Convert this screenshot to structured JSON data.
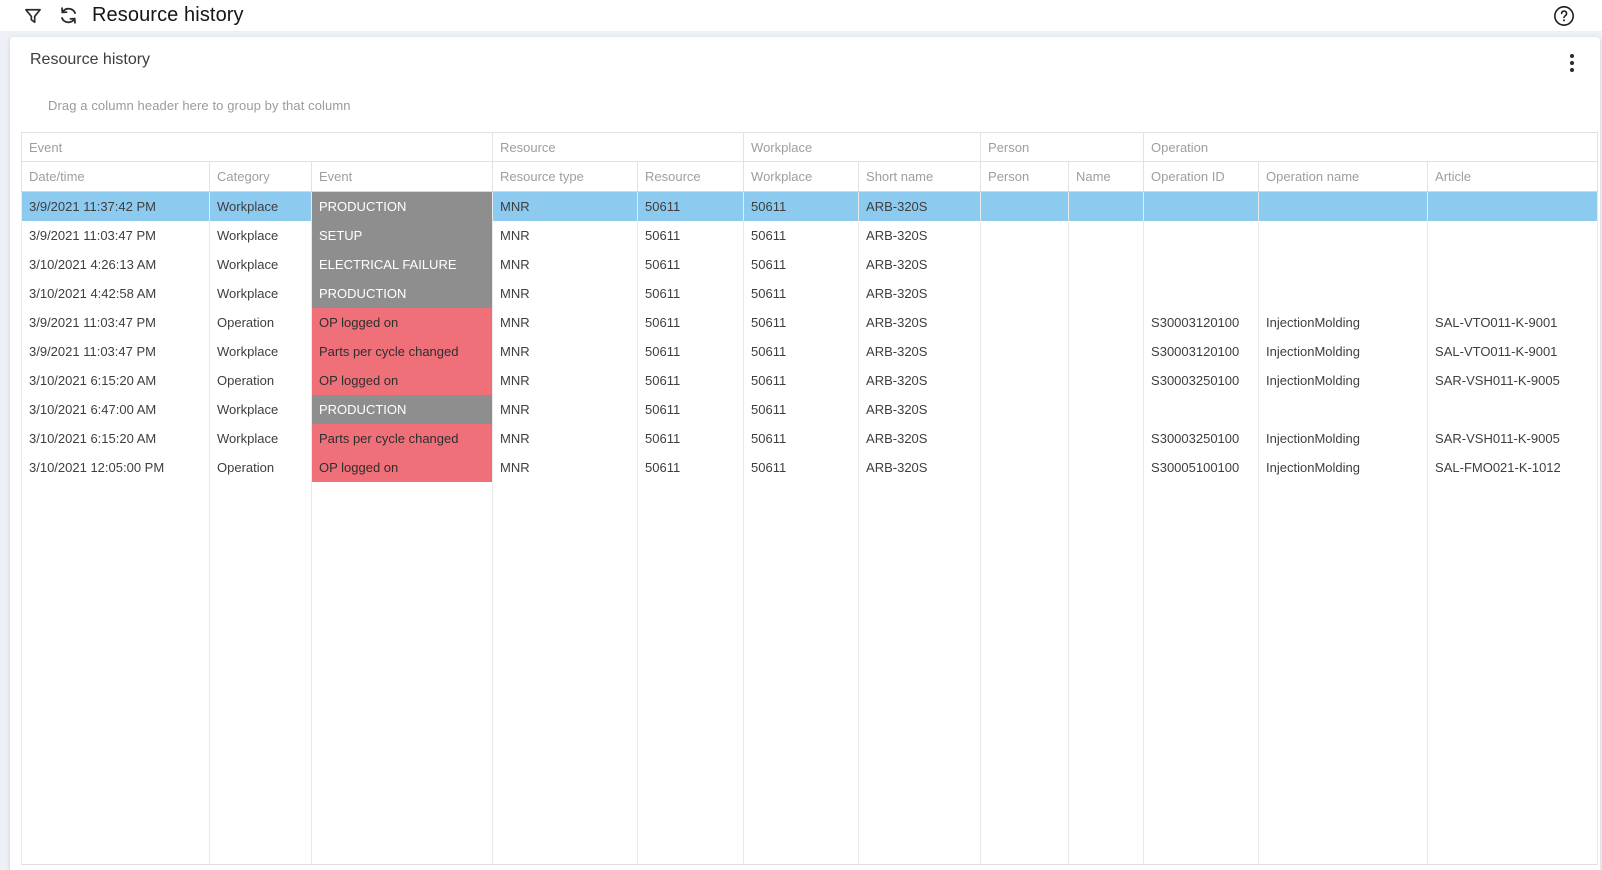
{
  "topbar": {
    "title": "Resource history",
    "filter_icon": "filter-funnel",
    "refresh_icon": "refresh-sync",
    "help_icon": "help-circle"
  },
  "panel": {
    "title": "Resource history",
    "menu_icon": "kebab-vertical",
    "group_hint": "Drag a column header here to group by that column"
  },
  "grid": {
    "column_groups": [
      {
        "label": "Event",
        "span": 3
      },
      {
        "label": "Resource",
        "span": 2
      },
      {
        "label": "Workplace",
        "span": 2
      },
      {
        "label": "Person",
        "span": 2
      },
      {
        "label": "Operation",
        "span": 3
      }
    ],
    "columns": [
      "Date/time",
      "Category",
      "Event",
      "Resource type",
      "Resource",
      "Workplace",
      "Short name",
      "Person",
      "Name",
      "Operation ID",
      "Operation name",
      "Article"
    ],
    "rows": [
      {
        "selected": true,
        "datetime": "3/9/2021 11:37:42 PM",
        "category": "Workplace",
        "event": "PRODUCTION",
        "event_style": "state",
        "resource_type": "MNR",
        "resource": "50611",
        "workplace": "50611",
        "short_name": "ARB-320S",
        "person": "",
        "name": "",
        "operation_id": "",
        "operation_name": "",
        "article": ""
      },
      {
        "selected": false,
        "datetime": "3/9/2021 11:03:47 PM",
        "category": "Workplace",
        "event": "SETUP",
        "event_style": "state",
        "resource_type": "MNR",
        "resource": "50611",
        "workplace": "50611",
        "short_name": "ARB-320S",
        "person": "",
        "name": "",
        "operation_id": "",
        "operation_name": "",
        "article": ""
      },
      {
        "selected": false,
        "datetime": "3/10/2021 4:26:13 AM",
        "category": "Workplace",
        "event": "ELECTRICAL FAILURE",
        "event_style": "state",
        "resource_type": "MNR",
        "resource": "50611",
        "workplace": "50611",
        "short_name": "ARB-320S",
        "person": "",
        "name": "",
        "operation_id": "",
        "operation_name": "",
        "article": ""
      },
      {
        "selected": false,
        "datetime": "3/10/2021 4:42:58 AM",
        "category": "Workplace",
        "event": "PRODUCTION",
        "event_style": "state",
        "resource_type": "MNR",
        "resource": "50611",
        "workplace": "50611",
        "short_name": "ARB-320S",
        "person": "",
        "name": "",
        "operation_id": "",
        "operation_name": "",
        "article": ""
      },
      {
        "selected": false,
        "datetime": "3/9/2021 11:03:47 PM",
        "category": "Operation",
        "event": "OP logged on",
        "event_style": "alert",
        "resource_type": "MNR",
        "resource": "50611",
        "workplace": "50611",
        "short_name": "ARB-320S",
        "person": "",
        "name": "",
        "operation_id": "S30003120100",
        "operation_name": "InjectionMolding",
        "article": "SAL-VTO011-K-9001"
      },
      {
        "selected": false,
        "datetime": "3/9/2021 11:03:47 PM",
        "category": "Workplace",
        "event": "Parts per cycle changed",
        "event_style": "alert",
        "resource_type": "MNR",
        "resource": "50611",
        "workplace": "50611",
        "short_name": "ARB-320S",
        "person": "",
        "name": "",
        "operation_id": "S30003120100",
        "operation_name": "InjectionMolding",
        "article": "SAL-VTO011-K-9001"
      },
      {
        "selected": false,
        "datetime": "3/10/2021 6:15:20 AM",
        "category": "Operation",
        "event": "OP logged on",
        "event_style": "alert",
        "resource_type": "MNR",
        "resource": "50611",
        "workplace": "50611",
        "short_name": "ARB-320S",
        "person": "",
        "name": "",
        "operation_id": "S30003250100",
        "operation_name": "InjectionMolding",
        "article": "SAR-VSH011-K-9005"
      },
      {
        "selected": false,
        "datetime": "3/10/2021 6:47:00 AM",
        "category": "Workplace",
        "event": "PRODUCTION",
        "event_style": "state",
        "resource_type": "MNR",
        "resource": "50611",
        "workplace": "50611",
        "short_name": "ARB-320S",
        "person": "",
        "name": "",
        "operation_id": "",
        "operation_name": "",
        "article": ""
      },
      {
        "selected": false,
        "datetime": "3/10/2021 6:15:20 AM",
        "category": "Workplace",
        "event": "Parts per cycle changed",
        "event_style": "alert",
        "resource_type": "MNR",
        "resource": "50611",
        "workplace": "50611",
        "short_name": "ARB-320S",
        "person": "",
        "name": "",
        "operation_id": "S30003250100",
        "operation_name": "InjectionMolding",
        "article": "SAR-VSH011-K-9005"
      },
      {
        "selected": false,
        "datetime": "3/10/2021 12:05:00 PM",
        "category": "Operation",
        "event": "OP logged on",
        "event_style": "alert",
        "resource_type": "MNR",
        "resource": "50611",
        "workplace": "50611",
        "short_name": "ARB-320S",
        "person": "",
        "name": "",
        "operation_id": "S30005100100",
        "operation_name": "InjectionMolding",
        "article": "SAL-FMO021-K-1012"
      }
    ]
  },
  "colors": {
    "selected_row": "#8dcaf0",
    "event_state_bg": "#8e8e8e",
    "event_alert_bg": "#f0707a",
    "page_bg": "#edf1f7"
  }
}
